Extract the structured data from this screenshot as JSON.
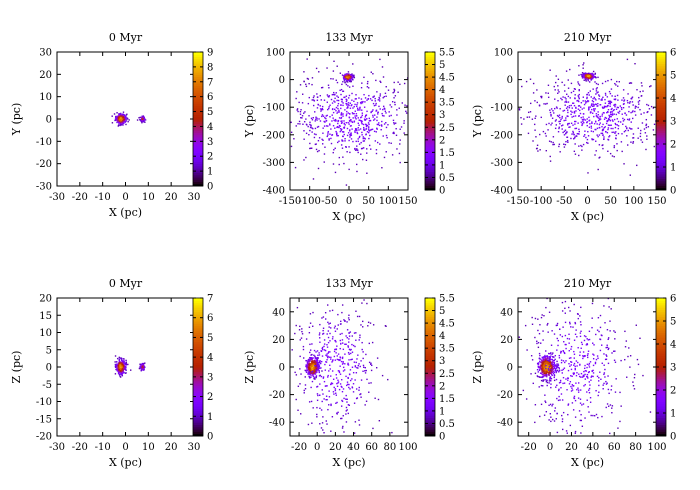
{
  "chart_data": [
    {
      "type": "heatmap",
      "title": "0 Myr",
      "xlabel": "X (pc)",
      "ylabel": "Y (pc)",
      "xlim": [
        -30,
        30
      ],
      "ylim": [
        -30,
        30
      ],
      "xticks": [
        -30,
        -20,
        -10,
        0,
        10,
        20,
        30
      ],
      "yticks": [
        -30,
        -20,
        -10,
        0,
        10,
        20,
        30
      ],
      "colorbar": {
        "min": 0,
        "max": 9,
        "ticks": [
          "0",
          "1",
          "2",
          "3",
          "4",
          "5",
          "6",
          "7",
          "8",
          "9"
        ]
      },
      "clusters": [
        {
          "x": -2,
          "y": 0,
          "spread": 1.1,
          "count": 320,
          "peak": 9
        },
        {
          "x": 7.5,
          "y": 0,
          "spread": 0.55,
          "count": 100,
          "peak": 5
        }
      ]
    },
    {
      "type": "heatmap",
      "title": "133 Myr",
      "xlabel": "X (pc)",
      "ylabel": "Y (pc)",
      "xlim": [
        -150,
        150
      ],
      "ylim": [
        -400,
        100
      ],
      "xticks": [
        -150,
        -100,
        -50,
        0,
        50,
        100,
        150
      ],
      "yticks": [
        -400,
        -300,
        -200,
        -100,
        0,
        100
      ],
      "colorbar": {
        "min": 0,
        "max": 5.5,
        "ticks": [
          "0",
          "0.5",
          "1",
          "1.5",
          "2",
          "2.5",
          "3",
          "3.5",
          "4",
          "4.5",
          "5",
          "5.5"
        ]
      },
      "clusters": [
        {
          "x": -3,
          "y": 9,
          "spread": 6,
          "count": 260,
          "peak": 5.5
        },
        {
          "x": 5,
          "y": -140,
          "spread": 75,
          "count": 700,
          "peak": 1
        }
      ]
    },
    {
      "type": "heatmap",
      "title": "210 Myr",
      "xlabel": "X (pc)",
      "ylabel": "Y (pc)",
      "xlim": [
        -150,
        150
      ],
      "ylim": [
        -400,
        100
      ],
      "xticks": [
        -150,
        -100,
        -50,
        0,
        50,
        100,
        150
      ],
      "yticks": [
        -400,
        -300,
        -200,
        -100,
        0,
        100
      ],
      "colorbar": {
        "min": 0,
        "max": 6,
        "ticks": [
          "0",
          "1",
          "2",
          "3",
          "4",
          "5",
          "6"
        ]
      },
      "clusters": [
        {
          "x": 2,
          "y": 12,
          "spread": 6,
          "count": 260,
          "peak": 6
        },
        {
          "x": 15,
          "y": -130,
          "spread": 70,
          "count": 700,
          "peak": 1
        }
      ]
    },
    {
      "type": "heatmap",
      "title": "0 Myr",
      "xlabel": "X (pc)",
      "ylabel": "Z (pc)",
      "xlim": [
        -30,
        30
      ],
      "ylim": [
        -20,
        20
      ],
      "xticks": [
        -30,
        -20,
        -10,
        0,
        10,
        20,
        30
      ],
      "yticks": [
        -20,
        -15,
        -10,
        -5,
        0,
        5,
        10,
        15,
        20
      ],
      "colorbar": {
        "min": 0,
        "max": 7,
        "ticks": [
          "0",
          "1",
          "2",
          "3",
          "4",
          "5",
          "6",
          "7"
        ]
      },
      "clusters": [
        {
          "x": -2,
          "y": 0,
          "spread": 1.0,
          "count": 300,
          "peak": 7
        },
        {
          "x": 7.5,
          "y": 0,
          "spread": 0.5,
          "count": 100,
          "peak": 4
        }
      ]
    },
    {
      "type": "heatmap",
      "title": "133 Myr",
      "xlabel": "X (pc)",
      "ylabel": "Z (pc)",
      "xlim": [
        -30,
        100
      ],
      "ylim": [
        -50,
        50
      ],
      "xticks": [
        -20,
        0,
        20,
        40,
        60,
        80,
        100
      ],
      "yticks": [
        -40,
        -20,
        0,
        20,
        40
      ],
      "colorbar": {
        "min": 0,
        "max": 5.5,
        "ticks": [
          "0",
          "0.5",
          "1",
          "1.5",
          "2",
          "2.5",
          "3",
          "3.5",
          "4",
          "4.5",
          "5",
          "5.5"
        ]
      },
      "clusters": [
        {
          "x": -5,
          "y": 0,
          "spread": 3.5,
          "count": 380,
          "peak": 5.5
        },
        {
          "x": 20,
          "y": 0,
          "spread": 22,
          "count": 450,
          "peak": 1
        }
      ]
    },
    {
      "type": "heatmap",
      "title": "210 Myr",
      "xlabel": "X (pc)",
      "ylabel": "Z (pc)",
      "xlim": [
        -30,
        100
      ],
      "ylim": [
        -50,
        50
      ],
      "xticks": [
        -20,
        0,
        20,
        40,
        60,
        80,
        100
      ],
      "yticks": [
        -40,
        -20,
        0,
        20,
        40
      ],
      "colorbar": {
        "min": 0,
        "max": 6,
        "ticks": [
          "0",
          "1",
          "2",
          "3",
          "4",
          "5",
          "6"
        ]
      },
      "clusters": [
        {
          "x": -3,
          "y": 0,
          "spread": 4,
          "count": 400,
          "peak": 6
        },
        {
          "x": 25,
          "y": 0,
          "spread": 24,
          "count": 500,
          "peak": 1
        }
      ]
    }
  ]
}
